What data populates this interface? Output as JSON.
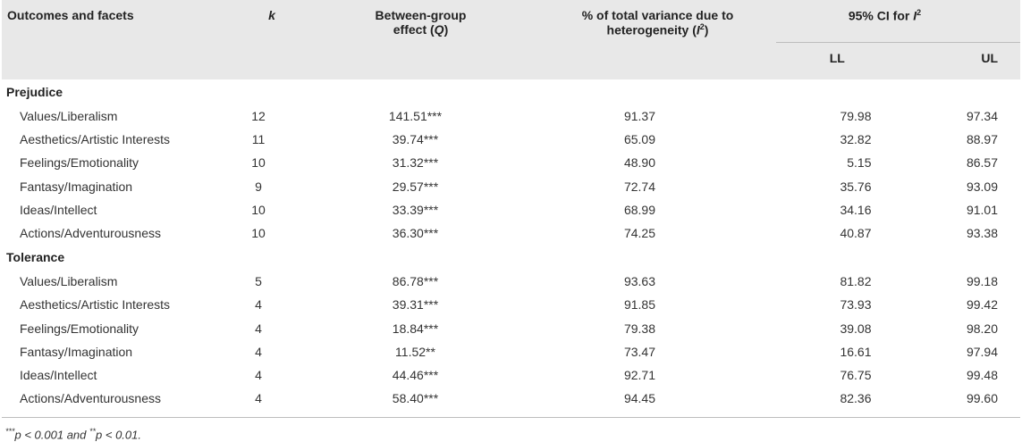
{
  "headers": {
    "outcomes": "Outcomes and facets",
    "k": "k",
    "q_line1": "Between-group",
    "q_line2_pre": "effect (",
    "q_line2_it": "Q",
    "q_line2_post": ")",
    "i_line1": "% of total variance due to",
    "i_line2_pre": "heterogeneity (",
    "i_line2_it": "I",
    "i_line2_sup": "2",
    "i_line2_post": ")",
    "ci_pre": "95% CI for ",
    "ci_it": "I",
    "ci_sup": "2",
    "ll": "LL",
    "ul": "UL"
  },
  "groups": [
    {
      "title": "Prejudice",
      "rows": [
        {
          "facet": "Values/Liberalism",
          "k": "12",
          "q": "141.51***",
          "i2": "91.37",
          "ll": "79.98",
          "ul": "97.34"
        },
        {
          "facet": "Aesthetics/Artistic Interests",
          "k": "11",
          "q": "39.74***",
          "i2": "65.09",
          "ll": "32.82",
          "ul": "88.97"
        },
        {
          "facet": "Feelings/Emotionality",
          "k": "10",
          "q": "31.32***",
          "i2": "48.90",
          "ll": "5.15",
          "ul": "86.57"
        },
        {
          "facet": "Fantasy/Imagination",
          "k": "9",
          "q": "29.57***",
          "i2": "72.74",
          "ll": "35.76",
          "ul": "93.09"
        },
        {
          "facet": "Ideas/Intellect",
          "k": "10",
          "q": "33.39***",
          "i2": "68.99",
          "ll": "34.16",
          "ul": "91.01"
        },
        {
          "facet": "Actions/Adventurousness",
          "k": "10",
          "q": "36.30***",
          "i2": "74.25",
          "ll": "40.87",
          "ul": "93.38"
        }
      ]
    },
    {
      "title": "Tolerance",
      "rows": [
        {
          "facet": "Values/Liberalism",
          "k": "5",
          "q": "86.78***",
          "i2": "93.63",
          "ll": "81.82",
          "ul": "99.18"
        },
        {
          "facet": "Aesthetics/Artistic Interests",
          "k": "4",
          "q": "39.31***",
          "i2": "91.85",
          "ll": "73.93",
          "ul": "99.42"
        },
        {
          "facet": "Feelings/Emotionality",
          "k": "4",
          "q": "18.84***",
          "i2": "79.38",
          "ll": "39.08",
          "ul": "98.20"
        },
        {
          "facet": "Fantasy/Imagination",
          "k": "4",
          "q": "11.52**",
          "i2": "73.47",
          "ll": "16.61",
          "ul": "97.94"
        },
        {
          "facet": "Ideas/Intellect",
          "k": "4",
          "q": "44.46***",
          "i2": "92.71",
          "ll": "76.75",
          "ul": "99.48"
        },
        {
          "facet": "Actions/Adventurousness",
          "k": "4",
          "q": "58.40***",
          "i2": "94.45",
          "ll": "82.36",
          "ul": "99.60"
        }
      ]
    }
  ],
  "footnote": {
    "p1_stars": "***",
    "p1_text": "p < 0.001 and ",
    "p2_stars": "**",
    "p2_text": "p < 0.01."
  }
}
